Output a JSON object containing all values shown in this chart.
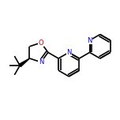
{
  "background_color": "#ffffff",
  "atom_colors": {
    "C": "#000000",
    "N": "#0000cc",
    "O": "#cc0000"
  },
  "bond_color": "#000000",
  "bond_width": 1.2,
  "dbo": 0.016,
  "figsize": [
    1.52,
    1.52
  ],
  "dpi": 100
}
